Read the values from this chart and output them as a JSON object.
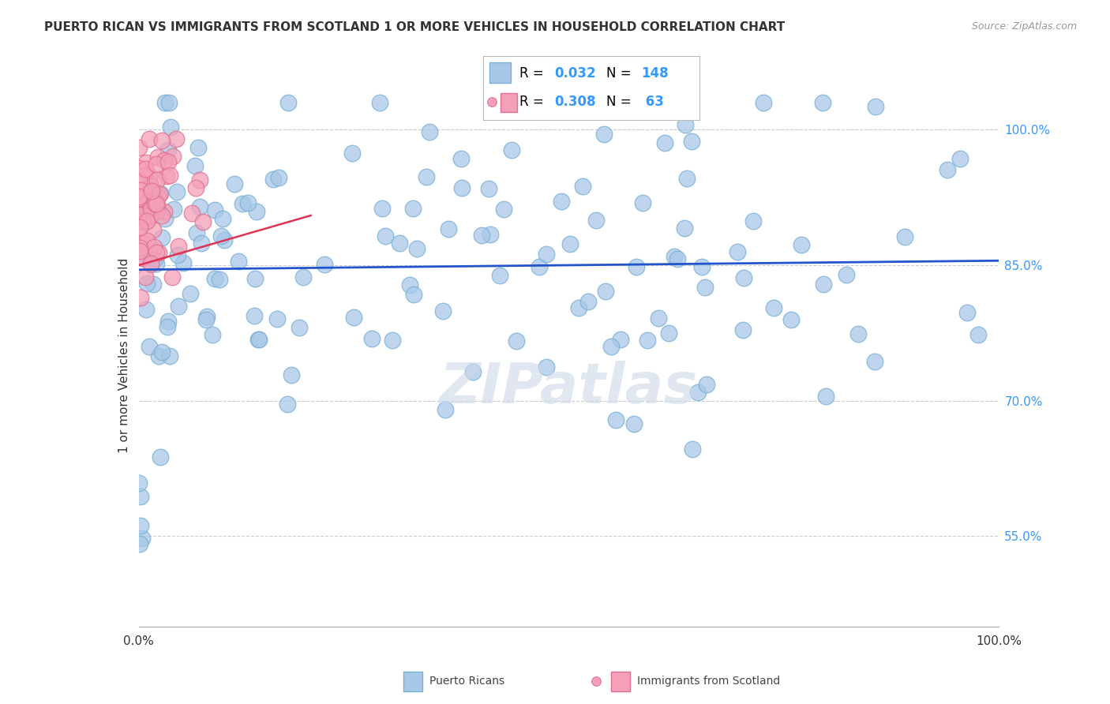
{
  "title": "PUERTO RICAN VS IMMIGRANTS FROM SCOTLAND 1 OR MORE VEHICLES IN HOUSEHOLD CORRELATION CHART",
  "source": "Source: ZipAtlas.com",
  "ylabel": "1 or more Vehicles in Household",
  "legend_labels": [
    "Puerto Ricans",
    "Immigrants from Scotland"
  ],
  "r_blue": 0.032,
  "n_blue": 148,
  "r_pink": 0.308,
  "n_pink": 63,
  "blue_color": "#a8c8e8",
  "blue_edge": "#7aafd4",
  "pink_color": "#f4a0b8",
  "pink_edge": "#e07090",
  "trend_blue_color": "#2255cc",
  "trend_pink_color": "#dd3355",
  "background_color": "#ffffff",
  "grid_color": "#cccccc",
  "ytick_color": "#3399ff",
  "text_color": "#333333",
  "source_color": "#999999",
  "watermark_color": "#ccd8e8",
  "ylim": [
    45,
    105
  ],
  "xlim": [
    0,
    100
  ],
  "yticks": [
    100,
    85,
    70,
    55
  ],
  "ytick_labels": [
    "100.0%",
    "85.0%",
    "70.0%",
    "55.0%"
  ]
}
